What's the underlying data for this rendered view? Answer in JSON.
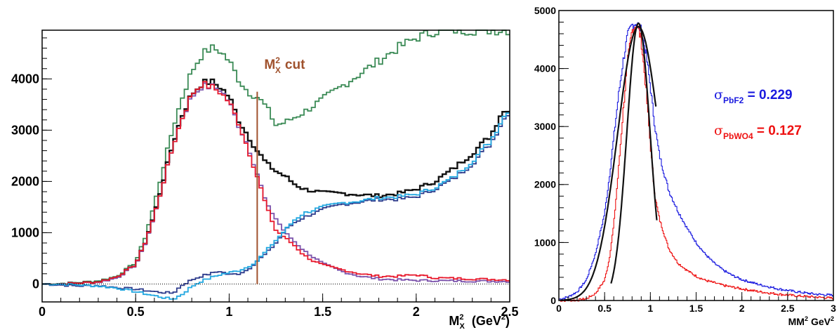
{
  "chart_data": [
    {
      "type": "line",
      "title": "",
      "xlabel": "M",
      "xlabel_sup": "2",
      "xlabel_sub": "X",
      "xlabel_unit": "(GeV",
      "xlabel_unit_sup": "2",
      "xlabel_unit_end": ")",
      "ylabel": "",
      "xlim": [
        0,
        2.5
      ],
      "ylim": [
        -350,
        4950
      ],
      "x_ticks": [
        0,
        0.5,
        1,
        1.5,
        2,
        2.5
      ],
      "x_tick_labels": [
        "0",
        "0.5",
        "1",
        "1.5",
        "2",
        "2.5"
      ],
      "y_ticks": [
        0,
        1000,
        2000,
        3000,
        4000
      ],
      "y_tick_labels": [
        "0",
        "1000",
        "2000",
        "3000",
        "4000"
      ],
      "annotation": {
        "text_main": "M",
        "text_sup": "2",
        "text_sub": "X",
        "text_rest": "cut",
        "x_cut": 1.15,
        "color": "#a0522d"
      },
      "series": [
        {
          "color": "#3a8a55",
          "x": [
            0,
            0.1,
            0.2,
            0.3,
            0.4,
            0.5,
            0.55,
            0.6,
            0.65,
            0.7,
            0.75,
            0.8,
            0.85,
            0.9,
            0.95,
            1.0,
            1.05,
            1.1,
            1.15,
            1.2,
            1.25,
            1.3,
            1.4,
            1.5,
            1.6,
            1.7,
            1.8,
            1.9,
            2.0,
            2.1,
            2.2,
            2.5
          ],
          "y": [
            0,
            10,
            30,
            60,
            150,
            420,
            900,
            1550,
            2300,
            3050,
            3650,
            4150,
            4450,
            4600,
            4550,
            4350,
            4000,
            3750,
            3650,
            3450,
            3100,
            3150,
            3350,
            3600,
            3850,
            4100,
            4350,
            4600,
            4800,
            4930,
            4950,
            4950
          ]
        },
        {
          "color": "#111111",
          "x": [
            0,
            0.1,
            0.2,
            0.3,
            0.4,
            0.5,
            0.55,
            0.6,
            0.65,
            0.7,
            0.75,
            0.8,
            0.85,
            0.9,
            0.95,
            1.0,
            1.05,
            1.1,
            1.15,
            1.2,
            1.25,
            1.3,
            1.35,
            1.4,
            1.5,
            1.6,
            1.7,
            1.8,
            1.9,
            2.0,
            2.1,
            2.2,
            2.3,
            2.4,
            2.45,
            2.5
          ],
          "y": [
            0,
            0,
            20,
            40,
            130,
            380,
            800,
            1350,
            2050,
            2750,
            3300,
            3700,
            3900,
            3950,
            3850,
            3650,
            3200,
            2900,
            2600,
            2350,
            2200,
            2100,
            1950,
            1850,
            1780,
            1770,
            1740,
            1720,
            1760,
            1850,
            2000,
            2250,
            2550,
            2900,
            3300,
            3450
          ]
        },
        {
          "color": "#7b52ab",
          "x": [
            0,
            0.1,
            0.2,
            0.3,
            0.4,
            0.5,
            0.55,
            0.6,
            0.65,
            0.7,
            0.75,
            0.8,
            0.85,
            0.9,
            0.95,
            1.0,
            1.05,
            1.1,
            1.15,
            1.2,
            1.3,
            1.4,
            1.5,
            1.6,
            1.7,
            1.8,
            1.9,
            2.0,
            2.2,
            2.5
          ],
          "y": [
            0,
            0,
            20,
            30,
            120,
            370,
            780,
            1320,
            2000,
            2700,
            3250,
            3650,
            3850,
            3850,
            3800,
            3550,
            3100,
            2700,
            2150,
            1550,
            1000,
            650,
            400,
            250,
            150,
            100,
            80,
            70,
            60,
            50
          ]
        },
        {
          "color": "#e8192c",
          "x": [
            0,
            0.1,
            0.2,
            0.3,
            0.4,
            0.5,
            0.55,
            0.6,
            0.65,
            0.7,
            0.75,
            0.8,
            0.85,
            0.9,
            0.95,
            1.0,
            1.05,
            1.1,
            1.15,
            1.2,
            1.25,
            1.3,
            1.35,
            1.4,
            1.45,
            1.5,
            1.6,
            1.7,
            1.8,
            1.9,
            2.0,
            2.1,
            2.2,
            2.3,
            2.4,
            2.5
          ],
          "y": [
            0,
            0,
            20,
            40,
            140,
            380,
            800,
            1330,
            2000,
            2700,
            3250,
            3700,
            3900,
            3850,
            3750,
            3550,
            3150,
            2650,
            2100,
            1500,
            1050,
            900,
            750,
            560,
            450,
            370,
            280,
            200,
            150,
            150,
            180,
            120,
            110,
            100,
            90,
            80
          ]
        },
        {
          "color": "#2d3b8c",
          "x": [
            0,
            0.1,
            0.2,
            0.3,
            0.4,
            0.5,
            0.6,
            0.7,
            0.75,
            0.8,
            0.85,
            0.9,
            0.95,
            1.0,
            1.05,
            1.1,
            1.15,
            1.2,
            1.25,
            1.3,
            1.35,
            1.4,
            1.5,
            1.6,
            1.7,
            1.8,
            1.9,
            2.0,
            2.1,
            2.2,
            2.3,
            2.4,
            2.45,
            2.5
          ],
          "y": [
            0,
            -20,
            -40,
            -30,
            -70,
            -100,
            -150,
            -180,
            -20,
            80,
            150,
            200,
            250,
            180,
            200,
            280,
            450,
            600,
            800,
            1050,
            1200,
            1300,
            1450,
            1550,
            1600,
            1650,
            1650,
            1700,
            1850,
            2050,
            2350,
            2750,
            3100,
            3400
          ]
        },
        {
          "color": "#22a7e0",
          "x": [
            0,
            0.1,
            0.2,
            0.3,
            0.4,
            0.5,
            0.6,
            0.7,
            0.75,
            0.8,
            0.85,
            0.9,
            0.95,
            1.0,
            1.05,
            1.1,
            1.15,
            1.2,
            1.25,
            1.3,
            1.35,
            1.4,
            1.5,
            1.6,
            1.7,
            1.8,
            1.9,
            2.0,
            2.1,
            2.2,
            2.3,
            2.4,
            2.45,
            2.5
          ],
          "y": [
            0,
            0,
            -20,
            -40,
            -80,
            -150,
            -230,
            -300,
            -200,
            -50,
            50,
            120,
            180,
            220,
            260,
            330,
            450,
            650,
            850,
            1050,
            1250,
            1380,
            1500,
            1580,
            1620,
            1680,
            1700,
            1750,
            1880,
            2080,
            2400,
            2800,
            3150,
            3450
          ]
        }
      ]
    },
    {
      "type": "line",
      "title": "",
      "xlabel": "MM",
      "xlabel_sup": "2",
      "xlabel_unit": "GeV",
      "xlabel_unit_sup": "2",
      "ylabel": "",
      "xlim": [
        0,
        3
      ],
      "ylim": [
        0,
        5000
      ],
      "x_ticks": [
        0,
        0.5,
        1,
        1.5,
        2,
        2.5,
        3
      ],
      "x_tick_labels": [
        "0",
        "0.5",
        "1",
        "1.5",
        "2",
        "2.5",
        "3"
      ],
      "y_ticks": [
        0,
        1000,
        2000,
        3000,
        4000,
        5000
      ],
      "y_tick_labels": [
        "0",
        "1000",
        "2000",
        "3000",
        "4000",
        "5000"
      ],
      "annotations": [
        {
          "sigma": "σ",
          "sub": "PbF2",
          "value": " = 0.229",
          "color": "#1a1adf"
        },
        {
          "sigma": "σ",
          "sub": "PbWO4",
          "value": " = 0.127",
          "color": "#ee1111"
        }
      ],
      "series": [
        {
          "color": "#1a1adf",
          "x": [
            0,
            0.1,
            0.2,
            0.3,
            0.4,
            0.5,
            0.55,
            0.6,
            0.65,
            0.7,
            0.75,
            0.8,
            0.85,
            0.9,
            0.95,
            1.0,
            1.05,
            1.1,
            1.15,
            1.2,
            1.3,
            1.4,
            1.5,
            1.6,
            1.7,
            1.8,
            1.9,
            2.0,
            2.2,
            2.4,
            2.6,
            2.8,
            3.0
          ],
          "y": [
            20,
            60,
            150,
            350,
            800,
            1500,
            2100,
            2800,
            3500,
            4100,
            4550,
            4750,
            4800,
            4650,
            4300,
            3700,
            3000,
            2500,
            2200,
            1900,
            1550,
            1250,
            1000,
            800,
            640,
            520,
            430,
            360,
            270,
            200,
            150,
            110,
            90
          ]
        },
        {
          "color": "#ee1111",
          "x": [
            0,
            0.2,
            0.3,
            0.4,
            0.5,
            0.55,
            0.6,
            0.65,
            0.7,
            0.75,
            0.8,
            0.85,
            0.9,
            0.95,
            1.0,
            1.05,
            1.1,
            1.15,
            1.2,
            1.3,
            1.4,
            1.5,
            1.6,
            1.8,
            2.0,
            2.2,
            2.4,
            2.6,
            2.8,
            3.0
          ],
          "y": [
            0,
            5,
            30,
            120,
            350,
            700,
            1300,
            2200,
            3200,
            4100,
            4650,
            4780,
            4500,
            3700,
            2700,
            1800,
            1400,
            1150,
            900,
            650,
            520,
            420,
            350,
            260,
            200,
            150,
            110,
            80,
            60,
            40
          ]
        }
      ],
      "fits": [
        {
          "color": "#111111",
          "mu": 0.87,
          "sigma": 0.229,
          "amplitude": 4720,
          "x_range": [
            0.02,
            1.06
          ]
        },
        {
          "color": "#111111",
          "mu": 0.87,
          "sigma": 0.127,
          "amplitude": 4780,
          "x_range": [
            0.57,
            1.07
          ]
        }
      ]
    }
  ]
}
